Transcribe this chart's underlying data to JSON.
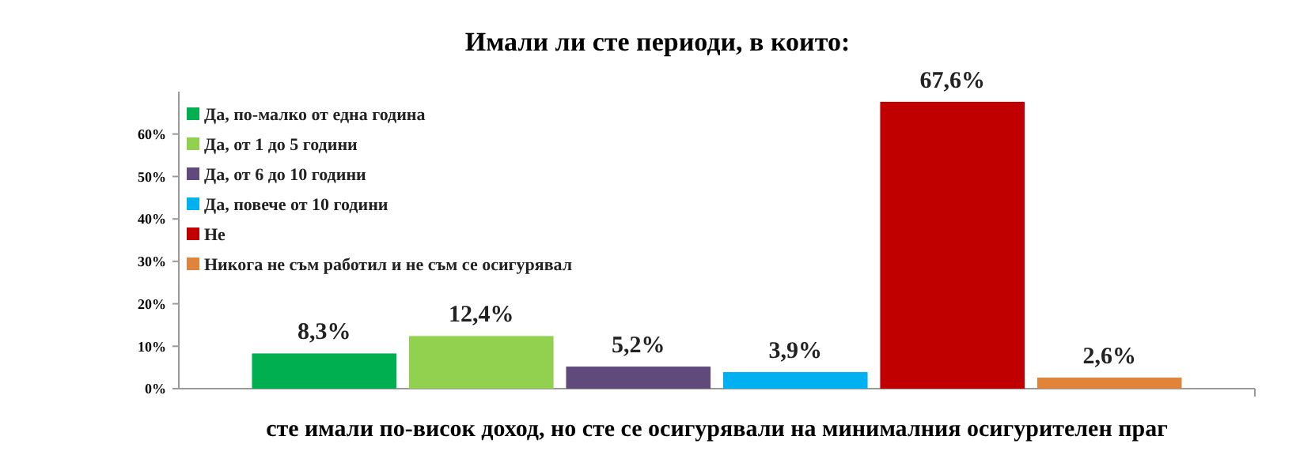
{
  "chart_data": {
    "type": "bar",
    "title": "Имали ли сте периоди, в които:",
    "xlabel": "сте имали по-висок доход, но сте се осигурявали на минималния осигурителен праг",
    "categories": [
      null
    ],
    "series": [
      {
        "name": "Да, по-малко от една година",
        "color": "#00b050",
        "values": [
          8.3
        ],
        "value_labels": [
          "8,3%"
        ]
      },
      {
        "name": "Да, от 1 до 5 години",
        "color": "#92d050",
        "values": [
          12.4
        ],
        "value_labels": [
          "12,4%"
        ]
      },
      {
        "name": "Да, от 6 до 10 години",
        "color": "#604a7b",
        "values": [
          5.2
        ],
        "value_labels": [
          "5,2%"
        ]
      },
      {
        "name": "Да, повече от 10 години",
        "color": "#00b0f0",
        "values": [
          3.9
        ],
        "value_labels": [
          "3,9%"
        ]
      },
      {
        "name": "Не",
        "color": "#c00000",
        "values": [
          67.6
        ],
        "value_labels": [
          "67,6%"
        ]
      },
      {
        "name": "Никога не съм работил и не съм се осигурявал",
        "color": "#e0843c",
        "values": [
          2.6
        ],
        "value_labels": [
          "2,6%"
        ]
      }
    ],
    "ylim": [
      0,
      70
    ],
    "yticks": [
      {
        "value": 0,
        "label": "0%"
      },
      {
        "value": 10,
        "label": "10%"
      },
      {
        "value": 20,
        "label": "20%"
      },
      {
        "value": 30,
        "label": "30%"
      },
      {
        "value": 40,
        "label": "40%"
      },
      {
        "value": 50,
        "label": "50%"
      },
      {
        "value": 60,
        "label": "60%"
      }
    ],
    "grid": false,
    "legend": "top left"
  }
}
